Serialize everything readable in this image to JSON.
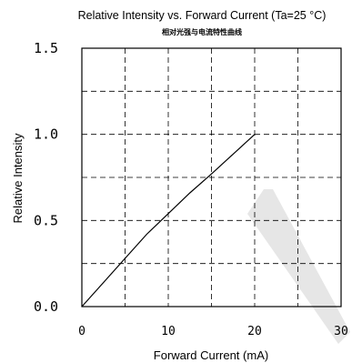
{
  "chart_data": {
    "type": "line",
    "title": "Relative Intensity vs. Forward Current (Ta=25 °C)",
    "subtitle": "相对光强与电流特性曲线",
    "xlabel": "Forward Current (mA)",
    "ylabel": "Relative Intensity",
    "xlim": [
      0,
      30
    ],
    "ylim": [
      0,
      1.5
    ],
    "xticks": [
      0,
      10,
      20,
      30
    ],
    "yticks": [
      0.0,
      0.5,
      1.0,
      1.5
    ],
    "xtick_labels": [
      "0",
      "10",
      "20",
      "30"
    ],
    "ytick_labels": [
      "0.0",
      "0.5",
      "1.0",
      "1.5"
    ],
    "grid": true,
    "grid_style": "dashed",
    "series": [
      {
        "x": [
          0,
          2.5,
          5,
          7.5,
          10,
          12.5,
          15,
          17.5,
          20
        ],
        "y": [
          0,
          0.14,
          0.28,
          0.42,
          0.54,
          0.66,
          0.77,
          0.885,
          1.0
        ]
      }
    ],
    "colors": {
      "line": "#000000",
      "grid": "#000000",
      "watermark": "#e6e6e6"
    }
  }
}
